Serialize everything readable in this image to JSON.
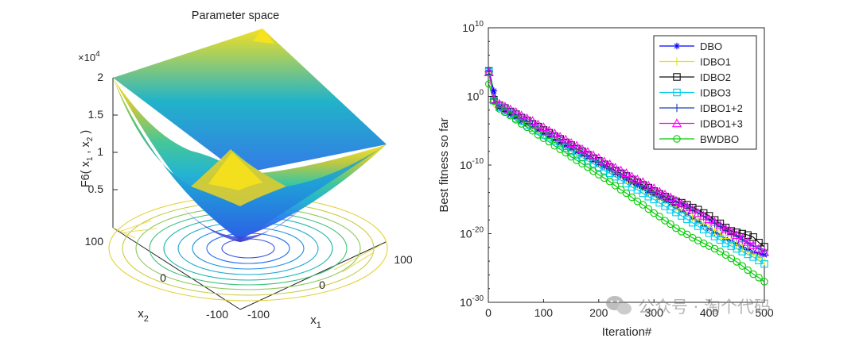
{
  "chart_data": [
    {
      "type": "surface3d",
      "title": "Parameter space",
      "zlabel": "F6( x",
      "zlabel_sub1": "1",
      "zlabel_sep": " , x",
      "zlabel_sub2": "2",
      "zlabel_end": " )",
      "xlabel": "x",
      "xlabel_sub": "1",
      "ylabel": "x",
      "ylabel_sub": "2",
      "z_multiplier": "×10",
      "z_multiplier_exp": "4",
      "z_ticks": [
        "0.5",
        "1",
        "1.5",
        "2"
      ],
      "x_ticks": [
        "-100",
        "0",
        "100"
      ],
      "y_ticks": [
        "100",
        "0",
        "-100"
      ],
      "xlim": [
        -100,
        100
      ],
      "ylim": [
        -100,
        100
      ],
      "zlim": [
        0,
        20000
      ],
      "function": "sum of squares (x1^2 + x2^2)",
      "colormap": "parula"
    },
    {
      "type": "line",
      "xlabel": "Iteration#",
      "ylabel": "Best fitness so far",
      "yscale": "log",
      "xlim": [
        0,
        500
      ],
      "ylim": [
        1e-30,
        10000000000.0
      ],
      "x_ticks": [
        "0",
        "100",
        "200",
        "300",
        "400",
        "500"
      ],
      "y_ticks": [
        {
          "base": "10",
          "exp": "10",
          "value": 10
        },
        {
          "base": "10",
          "exp": "0",
          "value": 0
        },
        {
          "base": "10",
          "exp": "-10",
          "value": -10
        },
        {
          "base": "10",
          "exp": "-20",
          "value": -20
        },
        {
          "base": "10",
          "exp": "-30",
          "value": -30
        }
      ],
      "legend_position": "top-right",
      "x": [
        1,
        10,
        20,
        30,
        40,
        50,
        60,
        70,
        80,
        90,
        100,
        110,
        120,
        130,
        140,
        150,
        160,
        170,
        180,
        190,
        200,
        210,
        220,
        230,
        240,
        250,
        260,
        270,
        280,
        290,
        300,
        310,
        320,
        330,
        340,
        350,
        360,
        370,
        380,
        390,
        400,
        410,
        420,
        430,
        440,
        450,
        460,
        470,
        480,
        490,
        500
      ],
      "series": [
        {
          "name": "DBO",
          "color": "#0000ff",
          "marker": "asterisk",
          "values": [
            3.8,
            0.8,
            -1.6,
            -2.1,
            -2.6,
            -3.0,
            -3.6,
            -4.0,
            -4.4,
            -4.9,
            -5.4,
            -5.8,
            -6.3,
            -6.8,
            -7.2,
            -7.6,
            -8.1,
            -8.5,
            -8.9,
            -9.3,
            -9.8,
            -10.2,
            -10.6,
            -11.2,
            -11.6,
            -12.1,
            -12.6,
            -13.0,
            -13.4,
            -14.0,
            -14.3,
            -14.8,
            -15.2,
            -15.6,
            -16.2,
            -16.7,
            -17.1,
            -17.7,
            -18.2,
            -18.8,
            -19.3,
            -19.8,
            -20.2,
            -20.8,
            -21.1,
            -21.5,
            -22.0,
            -22.3,
            -22.7,
            -22.9,
            -23.1
          ]
        },
        {
          "name": "IDBO1",
          "color": "#e8e800",
          "marker": "plus",
          "values": [
            3.5,
            -1.0,
            -1.4,
            -1.8,
            -2.3,
            -2.8,
            -3.3,
            -3.8,
            -4.3,
            -4.7,
            -5.2,
            -5.7,
            -6.1,
            -6.6,
            -7.0,
            -7.5,
            -7.9,
            -8.4,
            -8.9,
            -9.2,
            -9.7,
            -10.0,
            -10.5,
            -11.0,
            -11.5,
            -12.0,
            -12.5,
            -13.0,
            -13.4,
            -13.8,
            -14.2,
            -14.8,
            -15.2,
            -15.6,
            -16.1,
            -16.6,
            -17.0,
            -17.6,
            -18.0,
            -18.6,
            -19.1,
            -19.6,
            -20.2,
            -20.7,
            -21.2,
            -21.6,
            -22.1,
            -22.6,
            -23.0,
            -23.4,
            -24.0
          ]
        },
        {
          "name": "IDBO2",
          "color": "#111111",
          "marker": "square",
          "values": [
            3.7,
            -0.5,
            -1.3,
            -1.7,
            -2.2,
            -2.6,
            -3.1,
            -3.5,
            -4.0,
            -4.4,
            -4.9,
            -5.3,
            -5.8,
            -6.2,
            -6.7,
            -7.1,
            -7.6,
            -8.0,
            -8.5,
            -9.0,
            -9.4,
            -9.9,
            -10.3,
            -10.8,
            -11.2,
            -11.6,
            -12.1,
            -12.5,
            -12.9,
            -13.3,
            -13.8,
            -14.2,
            -14.6,
            -15.0,
            -15.3,
            -15.5,
            -15.8,
            -16.2,
            -16.5,
            -17.0,
            -17.4,
            -18.0,
            -18.5,
            -19.1,
            -19.6,
            -19.8,
            -20.0,
            -20.2,
            -20.5,
            -21.3,
            -21.9
          ]
        },
        {
          "name": "IDBO3",
          "color": "#00ccee",
          "marker": "square",
          "values": [
            3.6,
            -0.6,
            -1.6,
            -2.1,
            -2.6,
            -3.2,
            -3.6,
            -4.2,
            -4.6,
            -5.0,
            -5.6,
            -6.0,
            -6.5,
            -7.0,
            -7.5,
            -8.0,
            -8.5,
            -8.9,
            -9.4,
            -9.8,
            -10.3,
            -10.8,
            -11.2,
            -11.7,
            -12.2,
            -12.7,
            -13.2,
            -13.6,
            -14.1,
            -14.6,
            -15.0,
            -15.5,
            -16.0,
            -16.5,
            -16.9,
            -17.4,
            -17.9,
            -18.4,
            -18.9,
            -19.4,
            -19.9,
            -20.4,
            -20.9,
            -21.4,
            -21.8,
            -22.2,
            -22.6,
            -23.0,
            -23.4,
            -23.9,
            -24.4
          ]
        },
        {
          "name": "IDBO1+2",
          "color": "#1f3fb8",
          "marker": "plus",
          "values": [
            3.6,
            -0.4,
            -1.4,
            -1.8,
            -2.3,
            -2.7,
            -3.2,
            -3.6,
            -4.1,
            -4.6,
            -5.0,
            -5.5,
            -5.9,
            -6.4,
            -6.8,
            -7.3,
            -7.7,
            -8.2,
            -8.6,
            -9.1,
            -9.6,
            -10.0,
            -10.5,
            -10.9,
            -11.4,
            -11.8,
            -12.2,
            -12.7,
            -13.1,
            -13.5,
            -14.0,
            -14.4,
            -14.8,
            -15.1,
            -15.4,
            -15.7,
            -16.1,
            -16.5,
            -17.0,
            -17.5,
            -18.0,
            -18.5,
            -19.0,
            -19.5,
            -20.0,
            -20.4,
            -20.9,
            -21.4,
            -21.8,
            -22.2,
            -22.6
          ]
        },
        {
          "name": "IDBO1+3",
          "color": "#ff00ff",
          "marker": "triangle",
          "values": [
            3.5,
            -0.4,
            -1.1,
            -1.5,
            -1.9,
            -2.3,
            -2.8,
            -3.2,
            -3.6,
            -4.1,
            -4.5,
            -5.0,
            -5.4,
            -5.9,
            -6.3,
            -6.8,
            -7.2,
            -7.7,
            -8.1,
            -8.6,
            -9.0,
            -9.5,
            -9.9,
            -10.4,
            -10.8,
            -11.2,
            -11.7,
            -12.1,
            -12.5,
            -13.0,
            -13.4,
            -13.9,
            -14.3,
            -14.7,
            -15.2,
            -15.6,
            -16.1,
            -16.5,
            -17.0,
            -17.4,
            -17.9,
            -18.3,
            -18.8,
            -19.3,
            -19.7,
            -20.2,
            -20.7,
            -21.2,
            -21.7,
            -22.2,
            -22.7
          ]
        },
        {
          "name": "BWDBO",
          "color": "#00cc00",
          "marker": "circle",
          "values": [
            1.8,
            -0.7,
            -1.8,
            -2.3,
            -2.8,
            -3.4,
            -4.0,
            -4.5,
            -5.0,
            -5.6,
            -6.1,
            -6.6,
            -7.2,
            -7.7,
            -8.2,
            -8.8,
            -9.3,
            -9.8,
            -10.3,
            -10.9,
            -11.4,
            -11.9,
            -12.4,
            -13.0,
            -13.6,
            -14.1,
            -14.7,
            -15.3,
            -15.8,
            -16.4,
            -17.0,
            -17.5,
            -18.1,
            -18.6,
            -19.2,
            -19.7,
            -20.1,
            -20.6,
            -21.0,
            -21.4,
            -21.8,
            -22.2,
            -22.6,
            -23.1,
            -23.6,
            -24.1,
            -24.7,
            -25.3,
            -25.9,
            -26.4,
            -27.0
          ]
        }
      ]
    }
  ],
  "watermark": {
    "text": "公众号 · 淘个代码",
    "icon": "wechat-icon"
  }
}
